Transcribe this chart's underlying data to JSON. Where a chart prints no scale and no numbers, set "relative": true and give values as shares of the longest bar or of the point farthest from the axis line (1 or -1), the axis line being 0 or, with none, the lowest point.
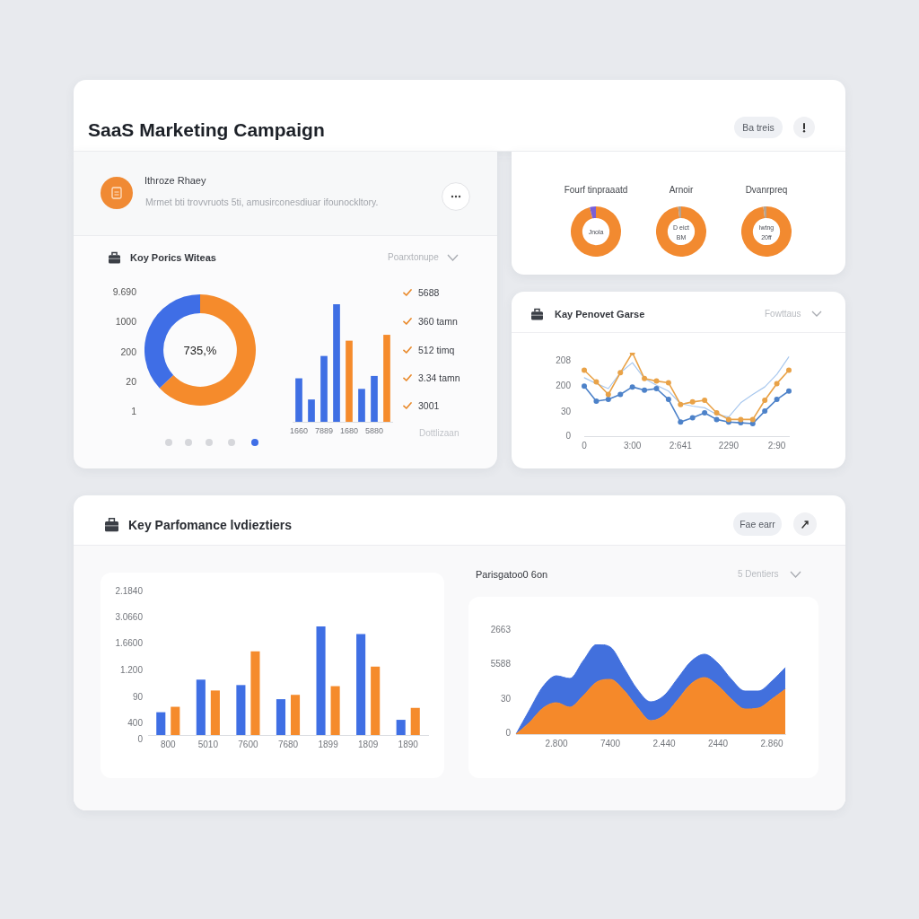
{
  "chart_data": [
    {
      "type": "other",
      "title": "SaaS Marketing Campaign",
      "annotations": [
        "Ba treis",
        "Ithroze Rhaey",
        "Mrmet bti trovvruots 5ti, amusirconesdiuar ifounockltory."
      ]
    },
    {
      "type": "donut",
      "title": "Koy Porics Witeas",
      "categories": [
        null,
        null
      ],
      "values": [
        63,
        37
      ],
      "colors": [
        "#f58b2c",
        "#3f6ee6"
      ],
      "annotations": [
        "9.690",
        "1000",
        "200",
        "20",
        "1",
        "735,%"
      ]
    },
    {
      "type": "bar",
      "relative": true,
      "categories": [
        "1660",
        null,
        "7889",
        null,
        "1680",
        null,
        "5880",
        null
      ],
      "values": [
        0.37,
        0.19,
        0.56,
        1,
        0.69,
        0.28,
        0.39,
        0.74
      ],
      "colors": [
        "#3f6fe4",
        "#3f6fe4",
        "#3f6fe4",
        "#3f6fe4",
        "#f58b2c",
        "#3f6fe4",
        "#3f6fe4",
        "#f58b2c"
      ],
      "annotations": [
        "Poarxtonupe",
        "5688",
        "360 tamn",
        "512 timq",
        "3.34 tamn",
        "3001",
        "Dottlizaan"
      ]
    },
    {
      "type": "donut",
      "title": "Fourf tinpraaatd",
      "categories": [
        null,
        null
      ],
      "values": [
        96,
        4
      ],
      "colors": [
        "#f28a30",
        "#7a5fd6"
      ],
      "annotations": [
        "Jnola"
      ]
    },
    {
      "type": "donut",
      "title": "Arnoir",
      "categories": [
        null,
        null
      ],
      "values": [
        98,
        2
      ],
      "colors": [
        "#f28a30",
        "#b7a28e"
      ],
      "annotations": [
        "D eict",
        "BM"
      ]
    },
    {
      "type": "donut",
      "title": "Dvanrpreq",
      "categories": [
        null,
        null
      ],
      "values": [
        98,
        2
      ],
      "colors": [
        "#f28a30",
        "#b7a28e"
      ],
      "annotations": [
        "lwtng",
        "20ff"
      ]
    },
    {
      "type": "line",
      "title": "Kay Penovet Garse",
      "annotations": [
        "Fowttaus",
        "208",
        "200",
        "30",
        "0"
      ],
      "relative": true,
      "marker": "circle",
      "categories": [
        "0",
        null,
        null,
        null,
        "3:00",
        null,
        null,
        null,
        "2:641",
        null,
        null,
        null,
        "2290",
        null,
        null,
        null,
        "2:90",
        null
      ],
      "series": [
        {
          "color": "#a9c8ee",
          "marker": "none",
          "values": [
            0.7,
            0.63,
            0.57,
            0.76,
            0.88,
            0.69,
            0.61,
            0.54,
            0.39,
            0.36,
            0.34,
            0.26,
            0.23,
            0.4,
            0.5,
            0.59,
            0.74,
            0.95
          ]
        },
        {
          "color": "#4d82c9",
          "values": [
            0.6,
            0.42,
            0.44,
            0.5,
            0.59,
            0.55,
            0.57,
            0.44,
            0.17,
            0.22,
            0.28,
            0.2,
            0.17,
            0.16,
            0.15,
            0.3,
            0.44,
            0.54
          ]
        },
        {
          "color": "#e9a247",
          "values": [
            0.79,
            0.65,
            0.5,
            0.76,
            1,
            0.69,
            0.66,
            0.64,
            0.38,
            0.41,
            0.43,
            0.28,
            0.2,
            0.2,
            0.2,
            0.43,
            0.63,
            0.79
          ]
        }
      ]
    },
    {
      "type": "bar",
      "title": "Key Parfomance lvdieztiers",
      "annotations": [
        "2.1840",
        "3.0660",
        "1.6600",
        "1.200",
        "90",
        "400",
        "0"
      ],
      "relative": true,
      "categories": [
        "800",
        "5010",
        "7600",
        "7680",
        "1899",
        "1809",
        "1890"
      ],
      "series": [
        {
          "color": "#3f6fe4",
          "values": [
            0.21,
            0.51,
            0.46,
            0.33,
            1,
            0.93,
            0.14
          ]
        },
        {
          "color": "#f58b2c",
          "values": [
            0.26,
            0.41,
            0.77,
            0.37,
            0.45,
            0.63,
            0.25
          ]
        }
      ]
    },
    {
      "type": "area",
      "title": "Parisgatoo0 6on",
      "annotations": [
        "Fae earr",
        "5 Dentiers",
        "2663",
        "5588",
        "30",
        "0"
      ],
      "relative": true,
      "stacked": true,
      "categories": [
        null,
        null,
        null,
        "2.800",
        null,
        null,
        null,
        "7400",
        null,
        null,
        null,
        "2.440",
        null,
        null,
        null,
        "2440",
        null,
        null,
        null,
        "2.860",
        null
      ],
      "series": [
        {
          "color": "#f5892a",
          "values": [
            0,
            0.13,
            0.29,
            0.35,
            0.3,
            0.43,
            0.58,
            0.61,
            0.49,
            0.3,
            0.15,
            0.21,
            0.38,
            0.56,
            0.63,
            0.54,
            0.39,
            0.28,
            0.29,
            0.39,
            0.5
          ]
        },
        {
          "color": "#4270dd",
          "values": [
            0,
            0.14,
            0.24,
            0.3,
            0.32,
            0.39,
            0.42,
            0.36,
            0.25,
            0.2,
            0.21,
            0.22,
            0.24,
            0.25,
            0.26,
            0.25,
            0.22,
            0.2,
            0.19,
            0.2,
            0.24
          ]
        }
      ]
    }
  ]
}
